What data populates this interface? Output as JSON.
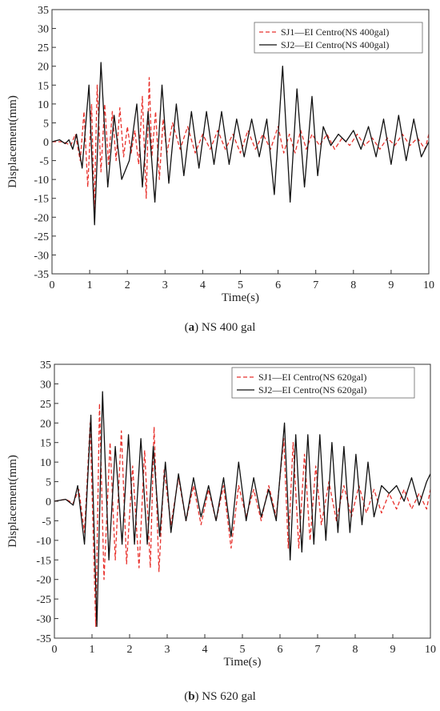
{
  "chart_data": [
    {
      "type": "line",
      "caption_letter": "a",
      "caption_text": "NS 400 gal",
      "xlabel": "Time(s)",
      "ylabel": "Displacement(mm)",
      "xlim": [
        0,
        10
      ],
      "ylim": [
        -35,
        35
      ],
      "xticks": [
        0,
        1,
        2,
        3,
        4,
        5,
        6,
        7,
        8,
        9,
        10
      ],
      "yticks": [
        35,
        30,
        25,
        20,
        15,
        10,
        5,
        0,
        -5,
        -10,
        -15,
        -20,
        -25,
        -30,
        -35
      ],
      "legend_position": "top-right",
      "series": [
        {
          "name": "SJ1—EI Centro(NS 400gal)",
          "color": "#e8322d",
          "dash": true,
          "x": [
            0,
            0.3,
            0.5,
            0.62,
            0.75,
            0.85,
            0.95,
            1.05,
            1.12,
            1.2,
            1.3,
            1.4,
            1.5,
            1.6,
            1.7,
            1.8,
            1.9,
            2.0,
            2.1,
            2.2,
            2.3,
            2.4,
            2.5,
            2.58,
            2.65,
            2.75,
            2.85,
            2.95,
            3.05,
            3.2,
            3.4,
            3.6,
            3.8,
            4.0,
            4.2,
            4.4,
            4.6,
            4.8,
            5.0,
            5.2,
            5.4,
            5.6,
            5.8,
            6.0,
            6.15,
            6.3,
            6.45,
            6.6,
            6.75,
            6.9,
            7.1,
            7.3,
            7.5,
            7.7,
            7.9,
            8.1,
            8.3,
            8.5,
            8.7,
            8.9,
            9.1,
            9.3,
            9.5,
            9.7,
            9.9,
            10.0
          ],
          "y": [
            0,
            0,
            -1,
            2,
            -5,
            8,
            -12,
            10,
            -18,
            15,
            -8,
            10,
            -6,
            8,
            -5,
            9,
            -4,
            4,
            -3,
            3,
            -6,
            12,
            -15,
            17,
            -4,
            8,
            -10,
            6,
            -3,
            5,
            -2,
            4,
            -3,
            2,
            -2,
            3,
            -2,
            2,
            -3,
            3,
            -2,
            2,
            -2,
            4,
            -3,
            2,
            -3,
            3,
            -2,
            2,
            -1,
            2,
            -2,
            1,
            -1,
            2,
            -1,
            1,
            -2,
            1,
            -1,
            2,
            -1,
            1,
            -2,
            2
          ]
        },
        {
          "name": "SJ2—EI Centro(NS 400gal)",
          "color": "#111111",
          "dash": false,
          "x": [
            0,
            0.2,
            0.35,
            0.45,
            0.55,
            0.65,
            0.8,
            0.98,
            1.13,
            1.3,
            1.48,
            1.65,
            1.85,
            2.05,
            2.25,
            2.4,
            2.55,
            2.73,
            2.92,
            3.1,
            3.3,
            3.5,
            3.7,
            3.9,
            4.1,
            4.3,
            4.5,
            4.7,
            4.9,
            5.1,
            5.3,
            5.5,
            5.7,
            5.9,
            6.12,
            6.32,
            6.5,
            6.7,
            6.9,
            7.05,
            7.2,
            7.4,
            7.6,
            7.8,
            8.0,
            8.2,
            8.4,
            8.6,
            8.8,
            9.0,
            9.2,
            9.4,
            9.6,
            9.8,
            10.0
          ],
          "y": [
            0,
            0.5,
            -0.5,
            0.5,
            -2,
            2,
            -7,
            15,
            -22,
            21,
            -12,
            7,
            -10,
            -5,
            10,
            -12,
            8,
            -16,
            15,
            -11,
            10,
            -9,
            8,
            -7,
            8,
            -6,
            8,
            -6,
            6,
            -4,
            6,
            -4,
            6,
            -14,
            20,
            -16,
            14,
            -12,
            12,
            -9,
            4,
            -1,
            2,
            0,
            3,
            -2,
            4,
            -4,
            6,
            -6,
            7,
            -5,
            6,
            -4,
            0
          ]
        }
      ]
    },
    {
      "type": "line",
      "caption_letter": "b",
      "caption_text": "NS 620 gal",
      "xlabel": "Time(s)",
      "ylabel": "Displacement(mm)",
      "xlim": [
        0,
        10
      ],
      "ylim": [
        -35,
        35
      ],
      "xticks": [
        0,
        1,
        2,
        3,
        4,
        5,
        6,
        7,
        8,
        9,
        10
      ],
      "yticks": [
        35,
        30,
        25,
        20,
        15,
        10,
        5,
        0,
        -5,
        -10,
        -15,
        -20,
        -25,
        -30,
        -35
      ],
      "legend_position": "top-right",
      "series": [
        {
          "name": "SJ1—EI Centro(NS 620gal)",
          "color": "#e8322d",
          "dash": true,
          "x": [
            0,
            0.3,
            0.5,
            0.65,
            0.8,
            0.95,
            1.1,
            1.2,
            1.32,
            1.48,
            1.62,
            1.78,
            1.92,
            2.08,
            2.25,
            2.4,
            2.55,
            2.65,
            2.78,
            2.92,
            3.1,
            3.3,
            3.5,
            3.7,
            3.9,
            4.1,
            4.3,
            4.5,
            4.7,
            4.9,
            5.1,
            5.3,
            5.5,
            5.7,
            5.9,
            6.1,
            6.22,
            6.35,
            6.5,
            6.65,
            6.8,
            6.95,
            7.1,
            7.3,
            7.5,
            7.7,
            7.9,
            8.1,
            8.3,
            8.5,
            8.7,
            8.9,
            9.1,
            9.3,
            9.5,
            9.7,
            9.9,
            10.0
          ],
          "y": [
            0,
            0.5,
            -0.5,
            3,
            -8,
            20,
            -32,
            25,
            -20,
            15,
            -15,
            18,
            -16,
            9,
            -17,
            13,
            -17,
            19,
            -18,
            8,
            -6,
            6,
            -5,
            4,
            -6,
            3,
            -5,
            4,
            -12,
            4,
            -4,
            3,
            -5,
            4,
            -4,
            16,
            -12,
            15,
            -12,
            12,
            -10,
            9,
            -6,
            5,
            -5,
            4,
            -4,
            4,
            -3,
            3,
            -3,
            2,
            -2,
            3,
            -2,
            2,
            -2,
            3
          ]
        },
        {
          "name": "SJ2—EI Centro(NS 620gal)",
          "color": "#111111",
          "dash": false,
          "x": [
            0,
            0.3,
            0.5,
            0.62,
            0.8,
            0.97,
            1.13,
            1.28,
            1.45,
            1.62,
            1.8,
            1.97,
            2.13,
            2.3,
            2.47,
            2.63,
            2.8,
            2.95,
            3.1,
            3.3,
            3.5,
            3.7,
            3.9,
            4.1,
            4.3,
            4.5,
            4.7,
            4.9,
            5.1,
            5.3,
            5.5,
            5.7,
            5.9,
            6.12,
            6.27,
            6.42,
            6.58,
            6.74,
            6.9,
            7.06,
            7.22,
            7.38,
            7.54,
            7.7,
            7.86,
            8.02,
            8.18,
            8.34,
            8.5,
            8.7,
            8.9,
            9.1,
            9.3,
            9.5,
            9.7,
            9.9,
            10.0
          ],
          "y": [
            0,
            0.5,
            -1,
            4,
            -11,
            22,
            -32,
            28,
            -15,
            14,
            -11,
            17,
            -11,
            16,
            -11,
            14,
            -9,
            10,
            -8,
            7,
            -5,
            6,
            -4,
            4,
            -5,
            6,
            -9,
            10,
            -5,
            6,
            -4,
            3,
            -5,
            20,
            -15,
            17,
            -13,
            17,
            -11,
            17,
            -10,
            15,
            -8,
            14,
            -8,
            12,
            -6,
            10,
            -4,
            4,
            2,
            4,
            0,
            6,
            -1,
            5,
            7
          ]
        }
      ]
    }
  ]
}
